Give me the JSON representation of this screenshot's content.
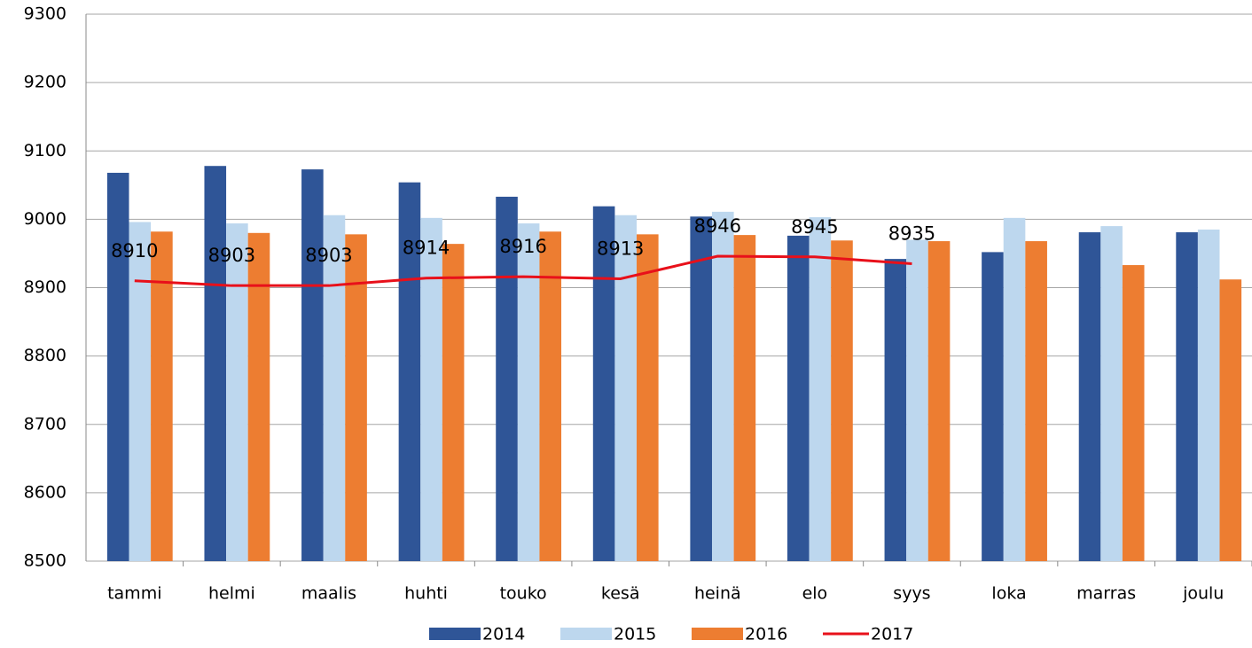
{
  "chart_data": {
    "type": "bar",
    "categories": [
      "tammi",
      "helmi",
      "maalis",
      "huhti",
      "touko",
      "kesä",
      "heinä",
      "elo",
      "syys",
      "loka",
      "marras",
      "joulu"
    ],
    "series": [
      {
        "name": "2014",
        "color": "#2f5597",
        "type": "bar",
        "values": [
          9068,
          9078,
          9073,
          9054,
          9033,
          9019,
          9004,
          8976,
          8942,
          8952,
          8981,
          8981
        ]
      },
      {
        "name": "2015",
        "color": "#bdd7ee",
        "type": "bar",
        "values": [
          8996,
          8994,
          9006,
          9002,
          8994,
          9006,
          9011,
          9003,
          8970,
          9002,
          8990,
          8985
        ]
      },
      {
        "name": "2016",
        "color": "#ed7d31",
        "type": "bar",
        "values": [
          8982,
          8980,
          8978,
          8964,
          8982,
          8978,
          8977,
          8969,
          8968,
          8968,
          8933,
          8912
        ]
      },
      {
        "name": "2017",
        "color": "#e8101a",
        "type": "line",
        "values": [
          8910,
          8903,
          8903,
          8914,
          8916,
          8913,
          8946,
          8945,
          8935,
          null,
          null,
          null
        ]
      }
    ],
    "ylim": [
      8500,
      9300
    ],
    "yticks": [
      8500,
      8600,
      8700,
      8800,
      8900,
      9000,
      9100,
      9200,
      9300
    ],
    "grid": true,
    "legend": "bottom",
    "data_labels_series": [
      "2017"
    ]
  }
}
